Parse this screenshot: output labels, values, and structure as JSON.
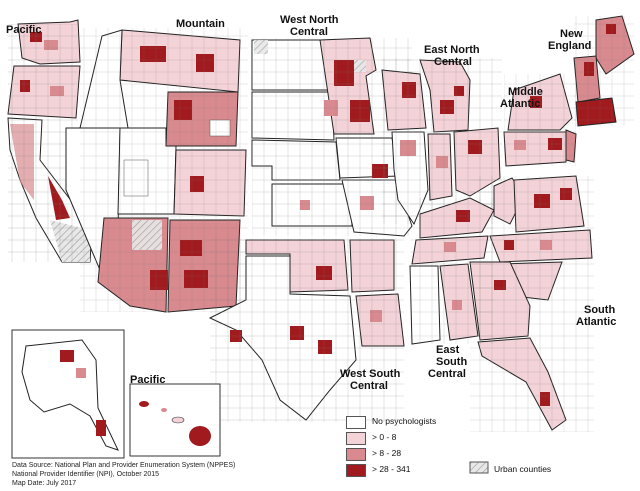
{
  "regions": {
    "pacific": "Pacific",
    "mountain": "Mountain",
    "west_north_central_1": "West North",
    "west_north_central_2": "Central",
    "east_north_central_1": "East North",
    "east_north_central_2": "Central",
    "new_england_1": "New",
    "new_england_2": "England",
    "middle_atlantic_1": "Middle",
    "middle_atlantic_2": "Atlantic",
    "south_atlantic_1": "South",
    "south_atlantic_2": "Atlantic",
    "east_south_central_1": "East",
    "east_south_central_2": "South",
    "east_south_central_3": "Central",
    "west_south_central_1": "West South",
    "west_south_central_2": "Central",
    "pacific_inset": "Pacific"
  },
  "legend": {
    "items": [
      {
        "label": "No psychologists",
        "color": "#ffffff"
      },
      {
        "label": "> 0 - 8",
        "color": "#f3d3d8"
      },
      {
        "label": "> 8 - 28",
        "color": "#d88a8f"
      },
      {
        "label": "> 28 - 341",
        "color": "#a01a1e"
      }
    ],
    "urban": "Urban counties"
  },
  "source": {
    "line1": "Data Source: National Plan and Provider Enumeration System (NPPES)",
    "line2": "National Provider Identifier (NPI), October 2015",
    "line3": "Map Date: July 2017"
  },
  "colors": {
    "none": "#ffffff",
    "low": "#f3d3d8",
    "mid": "#d88a8f",
    "high": "#a01a1e",
    "border": "#444444"
  }
}
